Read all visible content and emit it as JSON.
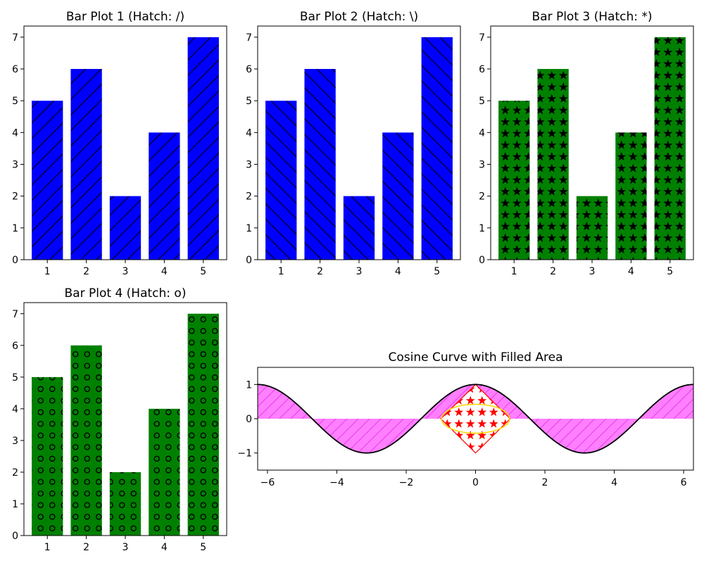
{
  "chart_data": [
    {
      "type": "bar",
      "title": "Bar Plot 1 (Hatch: /)",
      "categories": [
        1,
        2,
        3,
        4,
        5
      ],
      "values": [
        5,
        6,
        2,
        4,
        7
      ],
      "ylim": [
        0,
        7.35
      ],
      "yticks": [
        0,
        1,
        2,
        3,
        4,
        5,
        6,
        7
      ],
      "color": "#0000ff",
      "hatch": "/"
    },
    {
      "type": "bar",
      "title": "Bar Plot 2 (Hatch: \\)",
      "categories": [
        1,
        2,
        3,
        4,
        5
      ],
      "values": [
        5,
        6,
        2,
        4,
        7
      ],
      "ylim": [
        0,
        7.35
      ],
      "yticks": [
        0,
        1,
        2,
        3,
        4,
        5,
        6,
        7
      ],
      "color": "#0000ff",
      "hatch": "\\"
    },
    {
      "type": "bar",
      "title": "Bar Plot 3 (Hatch: *)",
      "categories": [
        1,
        2,
        3,
        4,
        5
      ],
      "values": [
        5,
        6,
        2,
        4,
        7
      ],
      "ylim": [
        0,
        7.35
      ],
      "yticks": [
        0,
        1,
        2,
        3,
        4,
        5,
        6,
        7
      ],
      "color": "#008000",
      "hatch": "*"
    },
    {
      "type": "bar",
      "title": "Bar Plot 4 (Hatch: o)",
      "categories": [
        1,
        2,
        3,
        4,
        5
      ],
      "values": [
        5,
        6,
        2,
        4,
        7
      ],
      "ylim": [
        0,
        7.35
      ],
      "yticks": [
        0,
        1,
        2,
        3,
        4,
        5,
        6,
        7
      ],
      "color": "#008000",
      "hatch": "o"
    },
    {
      "type": "line",
      "title": "Cosine Curve with Filled Area",
      "function": "cos(x)",
      "xlim": [
        -6.2832,
        6.2832
      ],
      "ylim": [
        -1.5,
        1.5
      ],
      "xticks": [
        -6,
        -4,
        -2,
        0,
        2,
        4,
        6
      ],
      "yticks": [
        -1,
        0,
        1
      ],
      "line_color": "#000000",
      "fill_color": "#ff00ff",
      "fill_alpha": 0.5,
      "fill_hatch": "/",
      "patch": {
        "shape": "diamond",
        "center": [
          0,
          0
        ],
        "vertices": [
          [
            0,
            1
          ],
          [
            1,
            0
          ],
          [
            0,
            -1
          ],
          [
            -1,
            0
          ]
        ],
        "fill_color": "#ffffff",
        "edge_color": "#ff0000",
        "hatch": "*",
        "hatch_color": "#ff0000",
        "overlay_circle": {
          "center": [
            0,
            0
          ],
          "radius": 1,
          "edge_color": "#ffd700"
        }
      }
    }
  ]
}
